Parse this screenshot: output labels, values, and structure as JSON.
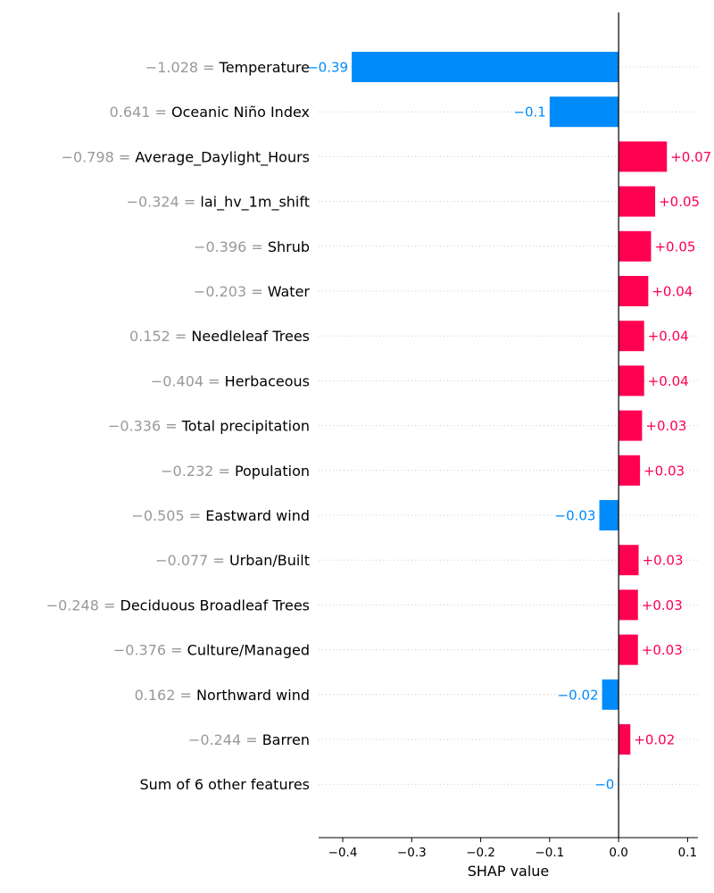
{
  "chart_data": {
    "type": "bar",
    "orientation": "horizontal",
    "xlabel": "SHAP value",
    "xlim": [
      -0.435,
      0.115
    ],
    "xticks": [
      -0.4,
      -0.3,
      -0.2,
      -0.1,
      0.0,
      0.1
    ],
    "xtick_labels": [
      "−0.4",
      "−0.3",
      "−0.2",
      "−0.1",
      "0.0",
      "0.1"
    ],
    "grid": "dotted horizontal row lines",
    "colors": {
      "positive": "#ff0051",
      "negative": "#008bfb",
      "zero_line": "#000000",
      "feature_value": "#999999"
    },
    "features": [
      {
        "value_text": "−1.028",
        "name": "Temperature",
        "shap": -0.387,
        "label": "−0.39"
      },
      {
        "value_text": "0.641",
        "name": "Oceanic Niño Index",
        "shap": -0.1,
        "label": "−0.1"
      },
      {
        "value_text": "−0.798",
        "name": "Average_Daylight_Hours",
        "shap": 0.07,
        "label": "+0.07"
      },
      {
        "value_text": "−0.324",
        "name": "lai_hv_1m_shift",
        "shap": 0.053,
        "label": "+0.05"
      },
      {
        "value_text": "−0.396",
        "name": "Shrub",
        "shap": 0.047,
        "label": "+0.05"
      },
      {
        "value_text": "−0.203",
        "name": "Water",
        "shap": 0.043,
        "label": "+0.04"
      },
      {
        "value_text": "0.152",
        "name": "Needleleaf Trees",
        "shap": 0.037,
        "label": "+0.04"
      },
      {
        "value_text": "−0.404",
        "name": "Herbaceous",
        "shap": 0.037,
        "label": "+0.04"
      },
      {
        "value_text": "−0.336",
        "name": "Total precipitation",
        "shap": 0.034,
        "label": "+0.03"
      },
      {
        "value_text": "−0.232",
        "name": "Population",
        "shap": 0.031,
        "label": "+0.03"
      },
      {
        "value_text": "−0.505",
        "name": "Eastward wind",
        "shap": -0.028,
        "label": "−0.03"
      },
      {
        "value_text": "−0.077",
        "name": "Urban/Built",
        "shap": 0.029,
        "label": "+0.03"
      },
      {
        "value_text": "−0.248",
        "name": "Deciduous Broadleaf Trees",
        "shap": 0.028,
        "label": "+0.03"
      },
      {
        "value_text": "−0.376",
        "name": "Culture/Managed",
        "shap": 0.028,
        "label": "+0.03"
      },
      {
        "value_text": "0.162",
        "name": "Northward wind",
        "shap": -0.024,
        "label": "−0.02"
      },
      {
        "value_text": "−0.244",
        "name": "Barren",
        "shap": 0.017,
        "label": "+0.02"
      },
      {
        "value_text": "",
        "name": "Sum of 6 other features",
        "shap": -0.001,
        "label": "−0"
      }
    ]
  }
}
